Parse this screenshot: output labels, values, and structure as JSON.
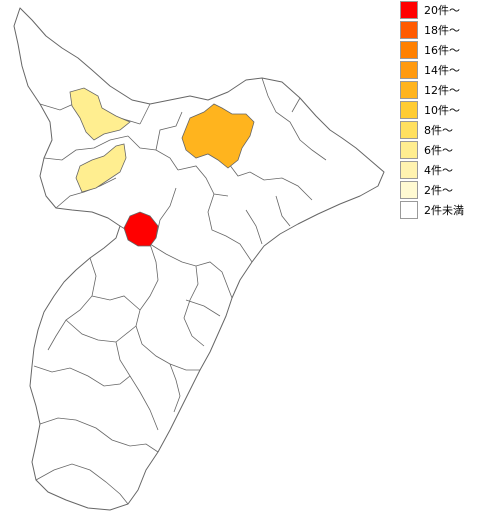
{
  "legend": {
    "items": [
      {
        "label": "20件～",
        "color": "#ff0000"
      },
      {
        "label": "18件～",
        "color": "#ff5a00"
      },
      {
        "label": "16件～",
        "color": "#ff8000"
      },
      {
        "label": "14件～",
        "color": "#ff9a10"
      },
      {
        "label": "12件～",
        "color": "#ffb41e"
      },
      {
        "label": "10件～",
        "color": "#ffcc33"
      },
      {
        "label": "8件～",
        "color": "#ffe060"
      },
      {
        "label": "6件～",
        "color": "#ffee90"
      },
      {
        "label": "4件～",
        "color": "#fff3b0"
      },
      {
        "label": "2件～",
        "color": "#fffad2"
      },
      {
        "label": "2件未満",
        "color": "#ffffff"
      }
    ]
  },
  "map": {
    "stroke_color": "#666666",
    "regions": [
      {
        "name": "northwest-municipality-a",
        "category_index": 7
      },
      {
        "name": "northwest-municipality-b",
        "category_index": 7
      },
      {
        "name": "north-municipality",
        "category_index": 4
      },
      {
        "name": "central-municipality",
        "category_index": 0
      }
    ]
  }
}
